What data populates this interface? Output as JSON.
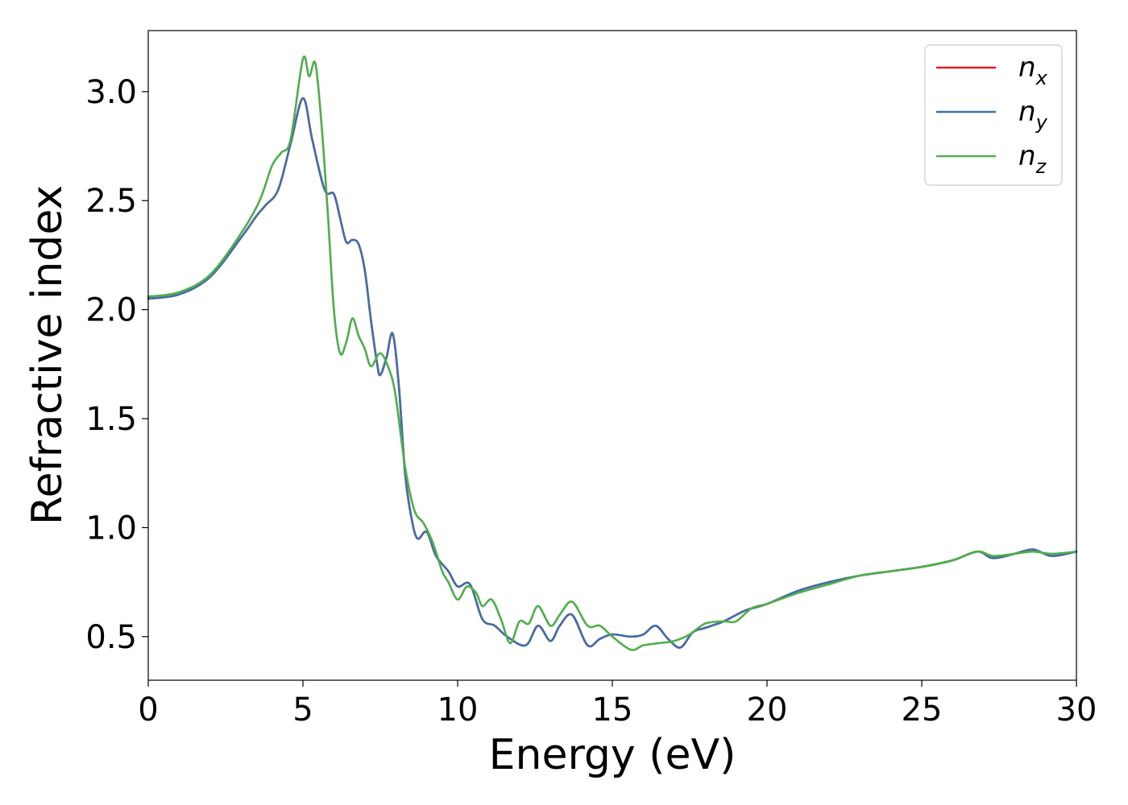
{
  "chart_data": {
    "type": "line",
    "title": "",
    "xlabel": "Energy (eV)",
    "ylabel": "Refractive index",
    "xlim": [
      0,
      30
    ],
    "ylim": [
      0.3,
      3.28
    ],
    "xticks": [
      0,
      5,
      10,
      15,
      20,
      25,
      30
    ],
    "xtick_labels": [
      "0",
      "5",
      "10",
      "15",
      "20",
      "25",
      "30"
    ],
    "yticks": [
      0.5,
      1.0,
      1.5,
      2.0,
      2.5,
      3.0
    ],
    "ytick_labels": [
      "0.5",
      "1.0",
      "1.5",
      "2.0",
      "2.5",
      "3.0"
    ],
    "grid": false,
    "legend_position": "top-right",
    "series": [
      {
        "name": "n",
        "subscript": "x",
        "color": "#e41a1c",
        "points": [
          [
            0,
            2.05
          ],
          [
            1,
            2.07
          ],
          [
            2,
            2.15
          ],
          [
            3,
            2.33
          ],
          [
            3.5,
            2.43
          ],
          [
            3.8,
            2.48
          ],
          [
            4.2,
            2.55
          ],
          [
            4.6,
            2.76
          ],
          [
            5,
            2.97
          ],
          [
            5.3,
            2.78
          ],
          [
            5.7,
            2.55
          ],
          [
            6.0,
            2.53
          ],
          [
            6.2,
            2.42
          ],
          [
            6.4,
            2.31
          ],
          [
            6.6,
            2.32
          ],
          [
            6.8,
            2.3
          ],
          [
            7.0,
            2.18
          ],
          [
            7.2,
            1.95
          ],
          [
            7.4,
            1.75
          ],
          [
            7.5,
            1.7
          ],
          [
            7.7,
            1.78
          ],
          [
            7.9,
            1.89
          ],
          [
            8.1,
            1.65
          ],
          [
            8.3,
            1.25
          ],
          [
            8.5,
            1.05
          ],
          [
            8.7,
            0.95
          ],
          [
            9.0,
            0.98
          ],
          [
            9.3,
            0.87
          ],
          [
            9.7,
            0.8
          ],
          [
            10.0,
            0.73
          ],
          [
            10.4,
            0.74
          ],
          [
            10.8,
            0.58
          ],
          [
            11.2,
            0.55
          ],
          [
            11.6,
            0.5
          ],
          [
            12.2,
            0.46
          ],
          [
            12.6,
            0.55
          ],
          [
            13.0,
            0.48
          ],
          [
            13.3,
            0.55
          ],
          [
            13.7,
            0.6
          ],
          [
            14.2,
            0.46
          ],
          [
            14.6,
            0.49
          ],
          [
            15.0,
            0.51
          ],
          [
            15.6,
            0.5
          ],
          [
            16.0,
            0.51
          ],
          [
            16.4,
            0.55
          ],
          [
            16.8,
            0.49
          ],
          [
            17.2,
            0.45
          ],
          [
            17.6,
            0.52
          ],
          [
            18.0,
            0.54
          ],
          [
            18.6,
            0.57
          ],
          [
            19.3,
            0.62
          ],
          [
            20.0,
            0.65
          ],
          [
            21.0,
            0.71
          ],
          [
            22.0,
            0.75
          ],
          [
            23.0,
            0.78
          ],
          [
            24.0,
            0.8
          ],
          [
            25.0,
            0.82
          ],
          [
            26.0,
            0.85
          ],
          [
            26.8,
            0.89
          ],
          [
            27.3,
            0.86
          ],
          [
            28.0,
            0.88
          ],
          [
            28.6,
            0.9
          ],
          [
            29.2,
            0.87
          ],
          [
            30.0,
            0.89
          ]
        ]
      },
      {
        "name": "n",
        "subscript": "y",
        "color": "#3f6fac",
        "points": [
          [
            0,
            2.05
          ],
          [
            1,
            2.07
          ],
          [
            2,
            2.15
          ],
          [
            3,
            2.33
          ],
          [
            3.5,
            2.43
          ],
          [
            3.8,
            2.48
          ],
          [
            4.2,
            2.55
          ],
          [
            4.6,
            2.76
          ],
          [
            5,
            2.97
          ],
          [
            5.3,
            2.78
          ],
          [
            5.7,
            2.55
          ],
          [
            6.0,
            2.53
          ],
          [
            6.2,
            2.42
          ],
          [
            6.4,
            2.31
          ],
          [
            6.6,
            2.32
          ],
          [
            6.8,
            2.3
          ],
          [
            7.0,
            2.18
          ],
          [
            7.2,
            1.95
          ],
          [
            7.4,
            1.75
          ],
          [
            7.5,
            1.7
          ],
          [
            7.7,
            1.78
          ],
          [
            7.9,
            1.89
          ],
          [
            8.1,
            1.65
          ],
          [
            8.3,
            1.25
          ],
          [
            8.5,
            1.05
          ],
          [
            8.7,
            0.95
          ],
          [
            9.0,
            0.98
          ],
          [
            9.3,
            0.87
          ],
          [
            9.7,
            0.8
          ],
          [
            10.0,
            0.73
          ],
          [
            10.4,
            0.74
          ],
          [
            10.8,
            0.58
          ],
          [
            11.2,
            0.55
          ],
          [
            11.6,
            0.5
          ],
          [
            12.2,
            0.46
          ],
          [
            12.6,
            0.55
          ],
          [
            13.0,
            0.48
          ],
          [
            13.3,
            0.55
          ],
          [
            13.7,
            0.6
          ],
          [
            14.2,
            0.46
          ],
          [
            14.6,
            0.49
          ],
          [
            15.0,
            0.51
          ],
          [
            15.6,
            0.5
          ],
          [
            16.0,
            0.51
          ],
          [
            16.4,
            0.55
          ],
          [
            16.8,
            0.49
          ],
          [
            17.2,
            0.45
          ],
          [
            17.6,
            0.52
          ],
          [
            18.0,
            0.54
          ],
          [
            18.6,
            0.57
          ],
          [
            19.3,
            0.62
          ],
          [
            20.0,
            0.65
          ],
          [
            21.0,
            0.71
          ],
          [
            22.0,
            0.75
          ],
          [
            23.0,
            0.78
          ],
          [
            24.0,
            0.8
          ],
          [
            25.0,
            0.82
          ],
          [
            26.0,
            0.85
          ],
          [
            26.8,
            0.89
          ],
          [
            27.3,
            0.86
          ],
          [
            28.0,
            0.88
          ],
          [
            28.6,
            0.9
          ],
          [
            29.2,
            0.87
          ],
          [
            30.0,
            0.89
          ]
        ]
      },
      {
        "name": "n",
        "subscript": "z",
        "color": "#4daf4a",
        "points": [
          [
            0,
            2.06
          ],
          [
            1,
            2.08
          ],
          [
            2,
            2.16
          ],
          [
            3,
            2.35
          ],
          [
            3.6,
            2.5
          ],
          [
            4.0,
            2.66
          ],
          [
            4.3,
            2.72
          ],
          [
            4.6,
            2.78
          ],
          [
            5.0,
            3.15
          ],
          [
            5.2,
            3.07
          ],
          [
            5.4,
            3.13
          ],
          [
            5.6,
            2.85
          ],
          [
            5.8,
            2.45
          ],
          [
            6.0,
            2.0
          ],
          [
            6.2,
            1.8
          ],
          [
            6.4,
            1.85
          ],
          [
            6.6,
            1.96
          ],
          [
            6.8,
            1.88
          ],
          [
            7.0,
            1.82
          ],
          [
            7.2,
            1.74
          ],
          [
            7.5,
            1.8
          ],
          [
            7.8,
            1.72
          ],
          [
            8.0,
            1.6
          ],
          [
            8.3,
            1.28
          ],
          [
            8.6,
            1.08
          ],
          [
            8.9,
            1.02
          ],
          [
            9.2,
            0.93
          ],
          [
            9.5,
            0.8
          ],
          [
            9.7,
            0.75
          ],
          [
            10.0,
            0.67
          ],
          [
            10.3,
            0.73
          ],
          [
            10.6,
            0.7
          ],
          [
            10.8,
            0.64
          ],
          [
            11.1,
            0.67
          ],
          [
            11.4,
            0.58
          ],
          [
            11.7,
            0.47
          ],
          [
            12.0,
            0.57
          ],
          [
            12.3,
            0.56
          ],
          [
            12.6,
            0.64
          ],
          [
            13.0,
            0.55
          ],
          [
            13.3,
            0.6
          ],
          [
            13.7,
            0.66
          ],
          [
            14.2,
            0.55
          ],
          [
            14.6,
            0.55
          ],
          [
            15.0,
            0.5
          ],
          [
            15.6,
            0.44
          ],
          [
            16.0,
            0.46
          ],
          [
            16.5,
            0.47
          ],
          [
            17.0,
            0.48
          ],
          [
            17.5,
            0.51
          ],
          [
            18.0,
            0.56
          ],
          [
            18.6,
            0.57
          ],
          [
            19.0,
            0.57
          ],
          [
            19.5,
            0.63
          ],
          [
            20.0,
            0.65
          ],
          [
            21.0,
            0.7
          ],
          [
            22.0,
            0.74
          ],
          [
            23.0,
            0.78
          ],
          [
            24.0,
            0.8
          ],
          [
            25.0,
            0.82
          ],
          [
            26.0,
            0.85
          ],
          [
            26.8,
            0.89
          ],
          [
            27.3,
            0.87
          ],
          [
            28.0,
            0.88
          ],
          [
            28.6,
            0.89
          ],
          [
            29.2,
            0.88
          ],
          [
            30.0,
            0.89
          ]
        ]
      }
    ]
  }
}
